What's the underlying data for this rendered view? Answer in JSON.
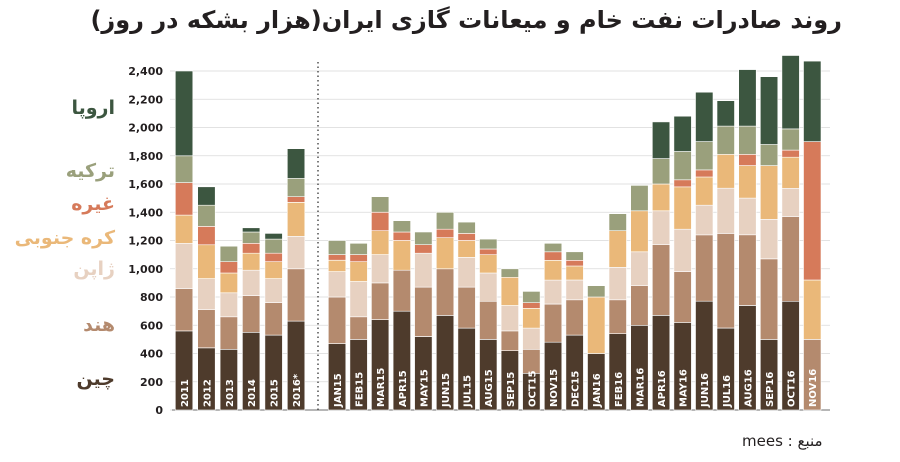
{
  "title": "روند صادرات نفت خام و میعانات گازی ایران(هزار بشکه در روز)",
  "source_text": "منبع : mees",
  "legend": [
    {
      "label": "اروپا",
      "color": "#3c5640"
    },
    {
      "label": "ترکیه",
      "color": "#9aa07c"
    },
    {
      "label": "غیره",
      "color": "#d67a5a"
    },
    {
      "label": "کره جنوبی",
      "color": "#eab879"
    },
    {
      "label": "ژاپن",
      "color": "#e7d1c1"
    },
    {
      "label": "هند",
      "color": "#b48a6e"
    },
    {
      "label": "چین",
      "color": "#4e3b2c"
    }
  ],
  "chart_data": {
    "type": "bar",
    "stacked": true,
    "ylim": [
      0,
      2400
    ],
    "yticks": [
      "0",
      "200",
      "400",
      "600",
      "800",
      "1,000",
      "1,200",
      "1,400",
      "1,600",
      "1,800",
      "2,000",
      "2,200",
      "2,400"
    ],
    "categories": [
      "2011",
      "2012",
      "2013",
      "2014",
      "2015",
      "2016*",
      "JAN15",
      "FEB15",
      "MAR15",
      "APR15",
      "MAY15",
      "JUN15",
      "JUL15",
      "AUG15",
      "SEP15",
      "OCT15",
      "NOV15",
      "DEC15",
      "JAN16",
      "FEB16",
      "MAR16",
      "APR16",
      "MAY16",
      "JUN16",
      "JUL16",
      "AUG16",
      "SEP16",
      "OCT16",
      "NOV16"
    ],
    "series": [
      {
        "name": "چین",
        "values": [
          560,
          440,
          430,
          550,
          530,
          630,
          470,
          500,
          640,
          700,
          520,
          670,
          580,
          500,
          420,
          260,
          480,
          530,
          400,
          540,
          600,
          670,
          620,
          770,
          580,
          740,
          500,
          770,
          0
        ]
      },
      {
        "name": "هند",
        "values": [
          300,
          270,
          230,
          260,
          230,
          370,
          330,
          160,
          260,
          290,
          350,
          330,
          290,
          270,
          140,
          170,
          270,
          250,
          0,
          240,
          280,
          500,
          360,
          470,
          670,
          500,
          570,
          600,
          500
        ]
      },
      {
        "name": "ژاپن",
        "values": [
          320,
          220,
          170,
          180,
          170,
          230,
          180,
          250,
          200,
          0,
          240,
          0,
          210,
          200,
          180,
          150,
          170,
          140,
          0,
          230,
          240,
          240,
          300,
          210,
          320,
          260,
          280,
          200,
          0
        ]
      },
      {
        "name": "کره جنوبی",
        "values": [
          200,
          240,
          140,
          120,
          120,
          240,
          80,
          140,
          170,
          210,
          0,
          220,
          120,
          130,
          200,
          140,
          140,
          100,
          400,
          260,
          290,
          190,
          300,
          200,
          240,
          230,
          380,
          220,
          420
        ]
      },
      {
        "name": "غیره",
        "values": [
          230,
          130,
          80,
          70,
          60,
          40,
          40,
          50,
          130,
          60,
          60,
          60,
          50,
          40,
          0,
          40,
          60,
          40,
          0,
          0,
          0,
          0,
          50,
          50,
          0,
          80,
          0,
          50,
          980
        ]
      },
      {
        "name": "ترکیه",
        "values": [
          190,
          150,
          110,
          80,
          100,
          130,
          100,
          80,
          110,
          80,
          90,
          120,
          80,
          70,
          60,
          80,
          60,
          60,
          80,
          120,
          180,
          180,
          200,
          200,
          200,
          200,
          150,
          150,
          0
        ]
      },
      {
        "name": "اروپا",
        "values": [
          600,
          130,
          0,
          30,
          40,
          210,
          0,
          0,
          0,
          0,
          0,
          0,
          0,
          0,
          0,
          0,
          0,
          0,
          0,
          0,
          0,
          260,
          250,
          350,
          180,
          400,
          480,
          520,
          570
        ]
      }
    ]
  }
}
